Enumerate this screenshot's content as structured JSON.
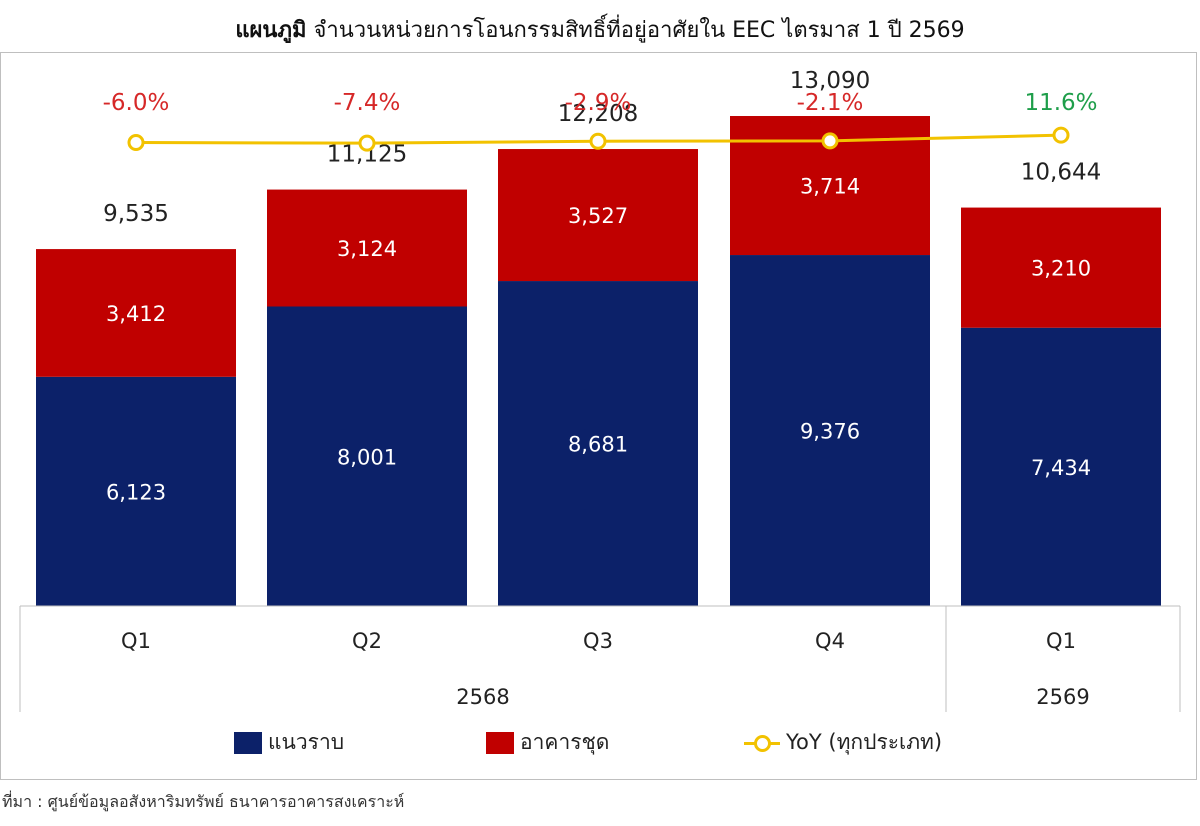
{
  "header": {
    "title_bold": "แผนภูมิ",
    "title_rest": "จำนวนหน่วยการโอนกรรมสิทธิ์ที่อยู่อาศัยใน EEC ไตรมาส 1 ปี 2569"
  },
  "source": "ที่มา : ศูนย์ข้อมูลอสังหาริมทรัพย์ ธนาคารอาคารสงเคราะห์",
  "chart_data": {
    "type": "bar",
    "stacked": true,
    "categories": [
      "Q1",
      "Q2",
      "Q3",
      "Q4",
      "Q1"
    ],
    "groups": [
      {
        "label": "2568",
        "count": 4
      },
      {
        "label": "2569",
        "count": 1
      }
    ],
    "series": [
      {
        "name": "แนวราบ",
        "values": [
          6123,
          8001,
          8681,
          9376,
          7434
        ],
        "labels": [
          "6,123",
          "8,001",
          "8,681",
          "9,376",
          "7,434"
        ],
        "color": "#0c2169"
      },
      {
        "name": "อาคารชุด",
        "values": [
          3412,
          3124,
          3527,
          3714,
          3210
        ],
        "labels": [
          "3,412",
          "3,124",
          "3,527",
          "3,714",
          "3,210"
        ],
        "color": "#c00000"
      }
    ],
    "totals": [
      9535,
      11125,
      12208,
      13090,
      10644
    ],
    "total_labels": [
      "9,535",
      "11,125",
      "12,208",
      "13,090",
      "10,644"
    ],
    "line": {
      "name": "YoY (ทุกประเภท)",
      "values": [
        -6.0,
        -7.4,
        -2.9,
        -2.1,
        11.6
      ],
      "labels": [
        "-6.0%",
        "-7.4%",
        "-2.9%",
        "-2.1%",
        "11.6%"
      ],
      "color": "#f2c200",
      "negative_label_color": "#d62828",
      "positive_label_color": "#1e9e4a"
    },
    "ylim": [
      0,
      14800
    ],
    "grid": false,
    "legend_position": "bottom"
  }
}
